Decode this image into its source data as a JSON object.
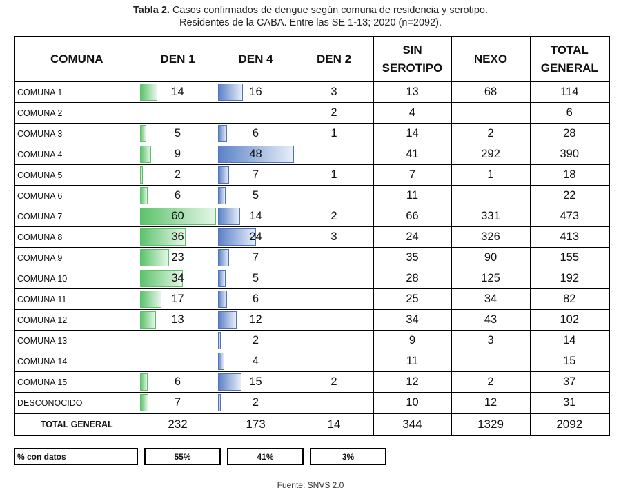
{
  "caption": {
    "bold": "Tabla 2.",
    "line1": " Casos confirmados de dengue según comuna de residencia y serotipo.",
    "line2": "Residentes de la CABA. Entre las SE 1-13; 2020 (n=2092)."
  },
  "headers": [
    "COMUNA",
    "DEN 1",
    "DEN 4",
    "DEN 2",
    "SIN SEROTIPO",
    "NEXO",
    "TOTAL GENERAL"
  ],
  "rows": [
    {
      "name": "COMUNA 1",
      "den1": "14",
      "den4": "16",
      "den2": "3",
      "sin": "13",
      "nexo": "68",
      "total": "114"
    },
    {
      "name": "COMUNA 2",
      "den1": "",
      "den4": "",
      "den2": "2",
      "sin": "4",
      "nexo": "",
      "total": "6"
    },
    {
      "name": "COMUNA 3",
      "den1": "5",
      "den4": "6",
      "den2": "1",
      "sin": "14",
      "nexo": "2",
      "total": "28"
    },
    {
      "name": "COMUNA 4",
      "den1": "9",
      "den4": "48",
      "den2": "",
      "sin": "41",
      "nexo": "292",
      "total": "390"
    },
    {
      "name": "COMUNA 5",
      "den1": "2",
      "den4": "7",
      "den2": "1",
      "sin": "7",
      "nexo": "1",
      "total": "18"
    },
    {
      "name": "COMUNA 6",
      "den1": "6",
      "den4": "5",
      "den2": "",
      "sin": "11",
      "nexo": "",
      "total": "22"
    },
    {
      "name": "COMUNA 7",
      "den1": "60",
      "den4": "14",
      "den2": "2",
      "sin": "66",
      "nexo": "331",
      "total": "473"
    },
    {
      "name": "COMUNA 8",
      "den1": "36",
      "den4": "24",
      "den2": "3",
      "sin": "24",
      "nexo": "326",
      "total": "413"
    },
    {
      "name": "COMUNA 9",
      "den1": "23",
      "den4": "7",
      "den2": "",
      "sin": "35",
      "nexo": "90",
      "total": "155"
    },
    {
      "name": "COMUNA 10",
      "den1": "34",
      "den4": "5",
      "den2": "",
      "sin": "28",
      "nexo": "125",
      "total": "192"
    },
    {
      "name": "COMUNA 11",
      "den1": "17",
      "den4": "6",
      "den2": "",
      "sin": "25",
      "nexo": "34",
      "total": "82"
    },
    {
      "name": "COMUNA 12",
      "den1": "13",
      "den4": "12",
      "den2": "",
      "sin": "34",
      "nexo": "43",
      "total": "102"
    },
    {
      "name": "COMUNA 13",
      "den1": "",
      "den4": "2",
      "den2": "",
      "sin": "9",
      "nexo": "3",
      "total": "14"
    },
    {
      "name": "COMUNA 14",
      "den1": "",
      "den4": "4",
      "den2": "",
      "sin": "11",
      "nexo": "",
      "total": "15"
    },
    {
      "name": "COMUNA 15",
      "den1": "6",
      "den4": "15",
      "den2": "2",
      "sin": "12",
      "nexo": "2",
      "total": "37"
    },
    {
      "name": "DESCONOCIDO",
      "den1": "7",
      "den4": "2",
      "den2": "",
      "sin": "10",
      "nexo": "12",
      "total": "31"
    }
  ],
  "total_row": {
    "name": "TOTAL GENERAL",
    "den1": "232",
    "den4": "173",
    "den2": "14",
    "sin": "344",
    "nexo": "1329",
    "total": "2092"
  },
  "pct": {
    "label": "% con datos",
    "den1": "55%",
    "den4": "41%",
    "den2": "3%"
  },
  "source": "Fuente: SNVS 2.0",
  "colors": {
    "den1_bar": "#5cc36c",
    "den4_bar": "#5b82c6"
  }
}
